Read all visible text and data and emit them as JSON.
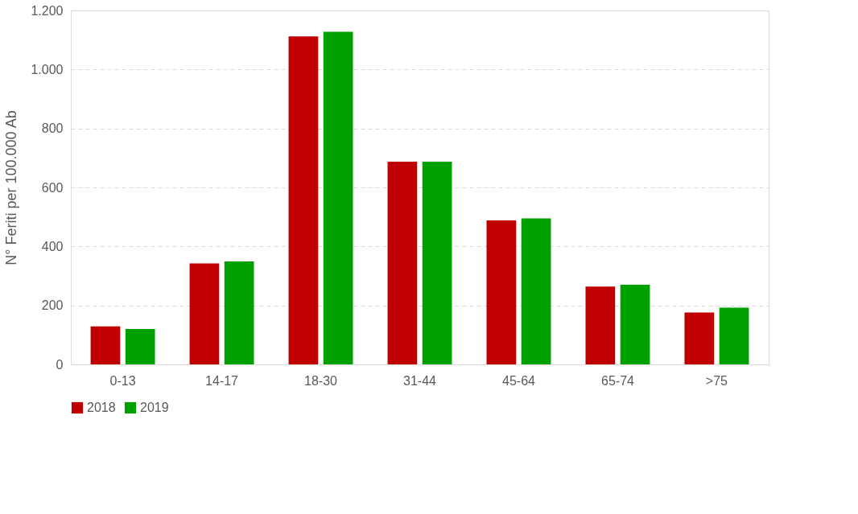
{
  "chart_data": {
    "type": "bar",
    "ylabel": "N° Feriti per 100.000 Ab",
    "categories": [
      "0-13",
      "14-17",
      "18-30",
      "31-44",
      "45-64",
      "65-74",
      ">75"
    ],
    "series": [
      {
        "name": "2018",
        "color": "#c00000",
        "values": [
          129,
          342,
          1112,
          687,
          488,
          264,
          176
        ]
      },
      {
        "name": "2019",
        "color": "#00a000",
        "values": [
          120,
          349,
          1128,
          687,
          495,
          270,
          192
        ]
      }
    ],
    "ylim": [
      0,
      1200
    ],
    "yticks": [
      0,
      200,
      400,
      600,
      800,
      {
        "value": 1000,
        "label": "1.000"
      },
      {
        "value": 1200,
        "label": "1.200"
      }
    ],
    "grid": "y",
    "legend": "bottom"
  }
}
